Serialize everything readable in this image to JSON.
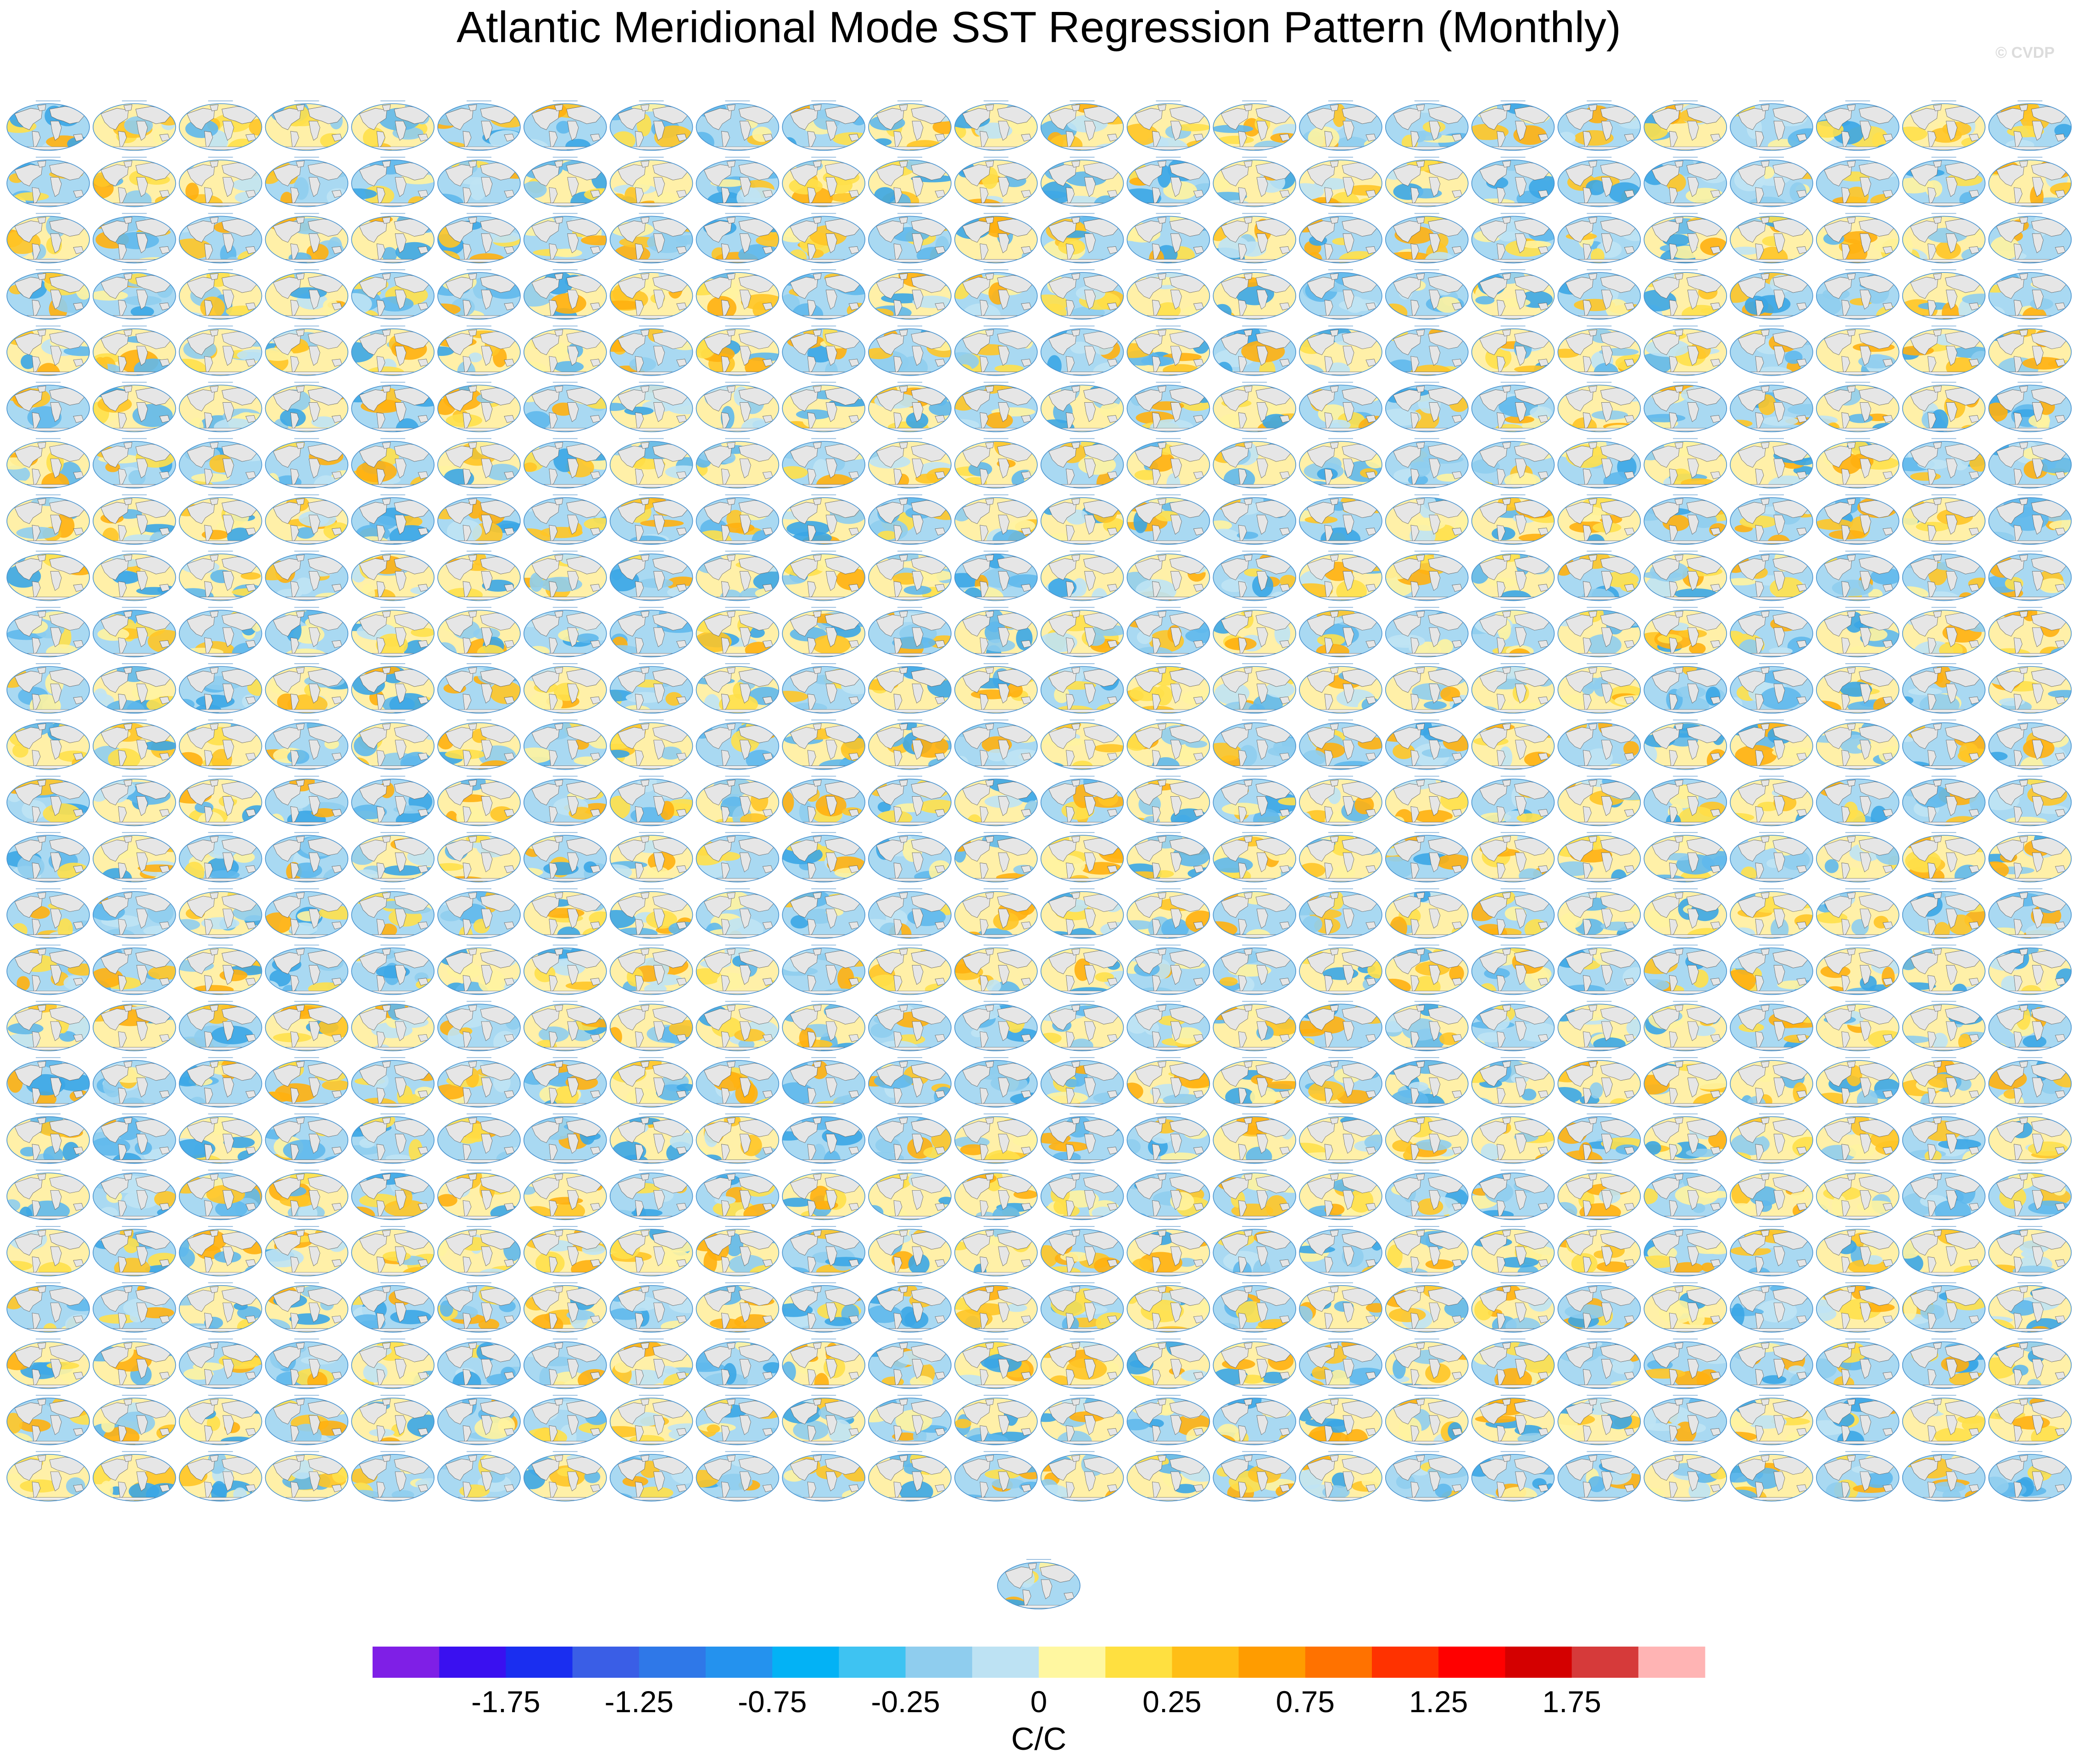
{
  "chart_data": {
    "type": "heatmap",
    "title": "Atlantic Meridional Mode SST Regression Pattern (Monthly)",
    "watermark": "© CVDP",
    "panel_count": 601,
    "panel_grid": {
      "columns": 24,
      "full_rows": 25,
      "last_row_panels": 1
    },
    "panel_subtitle": "",
    "colorbar": {
      "unit_label": "C/C",
      "tick_labels": [
        "-1.75",
        "-1.25",
        "-0.75",
        "-0.25",
        "0",
        "0.25",
        "0.75",
        "1.25",
        "1.75"
      ],
      "tick_values": [
        -1.75,
        -1.25,
        -0.75,
        -0.25,
        0,
        0.25,
        0.75,
        1.25,
        1.75
      ],
      "colors": [
        "#7f1fe6",
        "#3a10f0",
        "#1a2ef0",
        "#3a5ee6",
        "#2f78e8",
        "#2492ee",
        "#03b2f5",
        "#3ec3f2",
        "#8fcdee",
        "#bde2f3",
        "#fff7a0",
        "#ffe040",
        "#ffbe16",
        "#ff9c00",
        "#ff7200",
        "#ff3200",
        "#ff0000",
        "#d40000",
        "#d63a3a",
        "#ffb4b4"
      ]
    }
  }
}
